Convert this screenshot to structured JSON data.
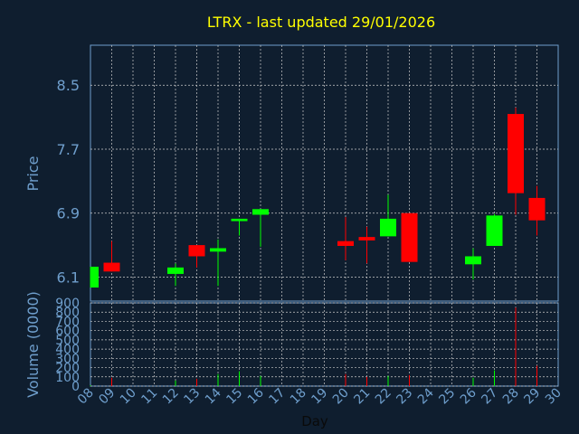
{
  "chart_data": {
    "type": "candlestick",
    "title": "LTRX - last updated 29/01/2026",
    "xlabel": "Day",
    "grid": true,
    "x_ticks": [
      "08",
      "09",
      "10",
      "11",
      "12",
      "13",
      "14",
      "15",
      "16",
      "17",
      "18",
      "19",
      "20",
      "21",
      "22",
      "23",
      "24",
      "25",
      "26",
      "27",
      "28",
      "29",
      "30"
    ],
    "price": {
      "ylabel": "Price",
      "ylim": [
        5.8,
        9.0
      ],
      "y_ticks": [
        "6.1",
        "6.9",
        "7.7",
        "8.5"
      ],
      "candles": [
        {
          "day": "08",
          "open": 5.97,
          "close": 6.23,
          "high": 6.23,
          "low": 5.97
        },
        {
          "day": "09",
          "open": 6.28,
          "close": 6.17,
          "high": 6.55,
          "low": 6.17
        },
        {
          "day": "12",
          "open": 6.14,
          "close": 6.22,
          "high": 6.27,
          "low": 5.99
        },
        {
          "day": "13",
          "open": 6.5,
          "close": 6.36,
          "high": 6.5,
          "low": 6.22
        },
        {
          "day": "14",
          "open": 6.43,
          "close": 6.45,
          "high": 6.57,
          "low": 5.99
        },
        {
          "day": "15",
          "open": 6.8,
          "close": 6.83,
          "high": 6.83,
          "low": 6.62
        },
        {
          "day": "16",
          "open": 6.88,
          "close": 6.95,
          "high": 6.95,
          "low": 6.48
        },
        {
          "day": "20",
          "open": 6.55,
          "close": 6.49,
          "high": 6.85,
          "low": 6.31
        },
        {
          "day": "21",
          "open": 6.59,
          "close": 6.57,
          "high": 6.73,
          "low": 6.27
        },
        {
          "day": "22",
          "open": 6.61,
          "close": 6.83,
          "high": 7.13,
          "low": 6.61
        },
        {
          "day": "23",
          "open": 6.9,
          "close": 6.29,
          "high": 6.9,
          "low": 6.29
        },
        {
          "day": "26",
          "open": 6.26,
          "close": 6.36,
          "high": 6.46,
          "low": 6.07
        },
        {
          "day": "27",
          "open": 6.49,
          "close": 6.87,
          "high": 6.89,
          "low": 6.49
        },
        {
          "day": "28",
          "open": 8.14,
          "close": 7.15,
          "high": 8.22,
          "low": 6.88
        },
        {
          "day": "29",
          "open": 7.09,
          "close": 6.81,
          "high": 7.24,
          "low": 6.62
        }
      ]
    },
    "volume": {
      "ylabel": "Volume (0000)",
      "ylim": [
        0,
        900
      ],
      "y_ticks": [
        "0",
        "100",
        "200",
        "300",
        "400",
        "500",
        "600",
        "700",
        "800",
        "900"
      ],
      "bars": [
        {
          "day": "08",
          "value": 10,
          "color": "#00ff00"
        },
        {
          "day": "09",
          "value": 90,
          "color": "#ff0000"
        },
        {
          "day": "12",
          "value": 60,
          "color": "#00ff00"
        },
        {
          "day": "13",
          "value": 80,
          "color": "#ff0000"
        },
        {
          "day": "14",
          "value": 130,
          "color": "#00ff00"
        },
        {
          "day": "15",
          "value": 160,
          "color": "#00ff00"
        },
        {
          "day": "16",
          "value": 110,
          "color": "#00ff00"
        },
        {
          "day": "20",
          "value": 130,
          "color": "#ff0000"
        },
        {
          "day": "21",
          "value": 100,
          "color": "#ff0000"
        },
        {
          "day": "22",
          "value": 110,
          "color": "#00ff00"
        },
        {
          "day": "23",
          "value": 120,
          "color": "#ff0000"
        },
        {
          "day": "26",
          "value": 90,
          "color": "#00ff00"
        },
        {
          "day": "27",
          "value": 170,
          "color": "#00ff00"
        },
        {
          "day": "28",
          "value": 850,
          "color": "#ff0000"
        },
        {
          "day": "29",
          "value": 220,
          "color": "#ff0000"
        }
      ]
    },
    "colors": {
      "background": "#0f1e2f",
      "up": "#00ff00",
      "down": "#ff0000",
      "axis": "#6f9fcd",
      "grid": "#cccccc",
      "title": "#ffff00"
    }
  }
}
